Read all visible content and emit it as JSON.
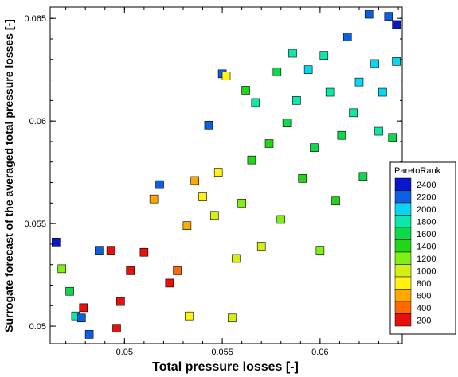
{
  "chart_data": {
    "type": "scatter",
    "xlabel": "Total pressure losses [-]",
    "ylabel": "Surrogate forecast of the averaged total pressure losses [-]",
    "xlim": [
      0.0462,
      0.0642
    ],
    "ylim": [
      0.04915,
      0.06555
    ],
    "x_ticks": [
      {
        "value": 0.05,
        "label": "0.05"
      },
      {
        "value": 0.055,
        "label": "0.055"
      },
      {
        "value": 0.06,
        "label": "0.06"
      }
    ],
    "y_ticks": [
      {
        "value": 0.05,
        "label": "0.05"
      },
      {
        "value": 0.055,
        "label": "0.055"
      },
      {
        "value": 0.06,
        "label": "0.06"
      },
      {
        "value": 0.065,
        "label": "0.065"
      }
    ],
    "x_minor_step": 0.001,
    "y_minor_step": 0.001,
    "marker": "square",
    "legend": {
      "title": "ParetoRank",
      "placement": "right",
      "levels": [
        {
          "value": 2400,
          "label": "2400",
          "color": "#0a17c8"
        },
        {
          "value": 2200,
          "label": "2200",
          "color": "#0b5fe5"
        },
        {
          "value": 2000,
          "label": "2000",
          "color": "#08d6f0"
        },
        {
          "value": 1800,
          "label": "1800",
          "color": "#0ce8a8"
        },
        {
          "value": 1600,
          "label": "1600",
          "color": "#0ed94a"
        },
        {
          "value": 1400,
          "label": "1400",
          "color": "#22d616"
        },
        {
          "value": 1200,
          "label": "1200",
          "color": "#7ef012"
        },
        {
          "value": 1000,
          "label": "1000",
          "color": "#d6ef10"
        },
        {
          "value": 800,
          "label": "800",
          "color": "#fff310"
        },
        {
          "value": 600,
          "label": "600",
          "color": "#ffa800"
        },
        {
          "value": 400,
          "label": "400",
          "color": "#ff6a00"
        },
        {
          "value": 200,
          "label": "200",
          "color": "#e8100c"
        }
      ]
    },
    "point_density_note": "scatter of ~2400 designs; rank increases with total pressure loss",
    "points": [
      [
        0.0465,
        0.0541,
        2350
      ],
      [
        0.0468,
        0.0528,
        1300
      ],
      [
        0.0472,
        0.0517,
        1600
      ],
      [
        0.0475,
        0.0505,
        1800
      ],
      [
        0.0478,
        0.0504,
        2300
      ],
      [
        0.0479,
        0.0509,
        300
      ],
      [
        0.0482,
        0.0496,
        2200
      ],
      [
        0.0487,
        0.0537,
        2300
      ],
      [
        0.0493,
        0.0537,
        250
      ],
      [
        0.0496,
        0.0499,
        150
      ],
      [
        0.0498,
        0.0512,
        300
      ],
      [
        0.0503,
        0.0527,
        250
      ],
      [
        0.051,
        0.0536,
        200
      ],
      [
        0.0515,
        0.0562,
        700
      ],
      [
        0.0518,
        0.0569,
        2300
      ],
      [
        0.0523,
        0.0521,
        300
      ],
      [
        0.0527,
        0.0527,
        500
      ],
      [
        0.0532,
        0.0549,
        700
      ],
      [
        0.0533,
        0.0505,
        900
      ],
      [
        0.0536,
        0.0571,
        600
      ],
      [
        0.054,
        0.0563,
        800
      ],
      [
        0.0543,
        0.0598,
        2200
      ],
      [
        0.0546,
        0.0554,
        1000
      ],
      [
        0.0548,
        0.0575,
        900
      ],
      [
        0.055,
        0.0623,
        2300
      ],
      [
        0.0552,
        0.0622,
        900
      ],
      [
        0.0555,
        0.0504,
        1000
      ],
      [
        0.0557,
        0.0533,
        1000
      ],
      [
        0.056,
        0.056,
        1200
      ],
      [
        0.0562,
        0.0615,
        1500
      ],
      [
        0.0565,
        0.0581,
        1400
      ],
      [
        0.0567,
        0.0609,
        1800
      ],
      [
        0.057,
        0.0539,
        1100
      ],
      [
        0.0574,
        0.0589,
        1500
      ],
      [
        0.0578,
        0.0624,
        1600
      ],
      [
        0.058,
        0.0552,
        1300
      ],
      [
        0.0583,
        0.0599,
        1700
      ],
      [
        0.0586,
        0.0633,
        1900
      ],
      [
        0.0588,
        0.061,
        1800
      ],
      [
        0.0591,
        0.0572,
        1400
      ],
      [
        0.0594,
        0.0625,
        2000
      ],
      [
        0.0597,
        0.0587,
        1600
      ],
      [
        0.06,
        0.0537,
        1200
      ],
      [
        0.0602,
        0.0632,
        1900
      ],
      [
        0.0605,
        0.0614,
        1900
      ],
      [
        0.0608,
        0.0561,
        1400
      ],
      [
        0.0611,
        0.0593,
        1700
      ],
      [
        0.0614,
        0.0641,
        2200
      ],
      [
        0.0617,
        0.0604,
        1800
      ],
      [
        0.062,
        0.0619,
        2000
      ],
      [
        0.0622,
        0.0573,
        1600
      ],
      [
        0.0625,
        0.0652,
        2200
      ],
      [
        0.0628,
        0.0628,
        2100
      ],
      [
        0.063,
        0.0595,
        1800
      ],
      [
        0.0632,
        0.0614,
        2000
      ],
      [
        0.0635,
        0.0651,
        2300
      ],
      [
        0.0637,
        0.0592,
        1700
      ],
      [
        0.0639,
        0.0629,
        2100
      ],
      [
        0.0639,
        0.0647,
        2400
      ]
    ]
  }
}
